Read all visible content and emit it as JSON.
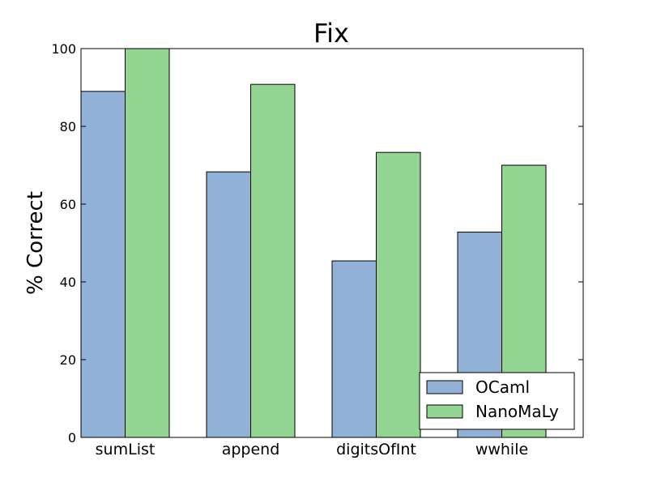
{
  "chart_data": {
    "type": "bar",
    "title": "Fix",
    "xlabel": "",
    "ylabel": "% Correct",
    "categories": [
      "sumList",
      "append",
      "digitsOfInt",
      "wwhile"
    ],
    "series": [
      {
        "name": "OCaml",
        "color": "#92b1d6",
        "values": [
          89,
          68.3,
          45.4,
          52.8
        ]
      },
      {
        "name": "NanoMaLy",
        "color": "#91d591",
        "values": [
          100,
          90.8,
          73.3,
          70
        ]
      }
    ],
    "ylim": [
      0,
      100
    ],
    "yticks": [
      "0",
      "20",
      "40",
      "60",
      "80",
      "100"
    ],
    "grid": false,
    "legend_position": "lower-right"
  }
}
